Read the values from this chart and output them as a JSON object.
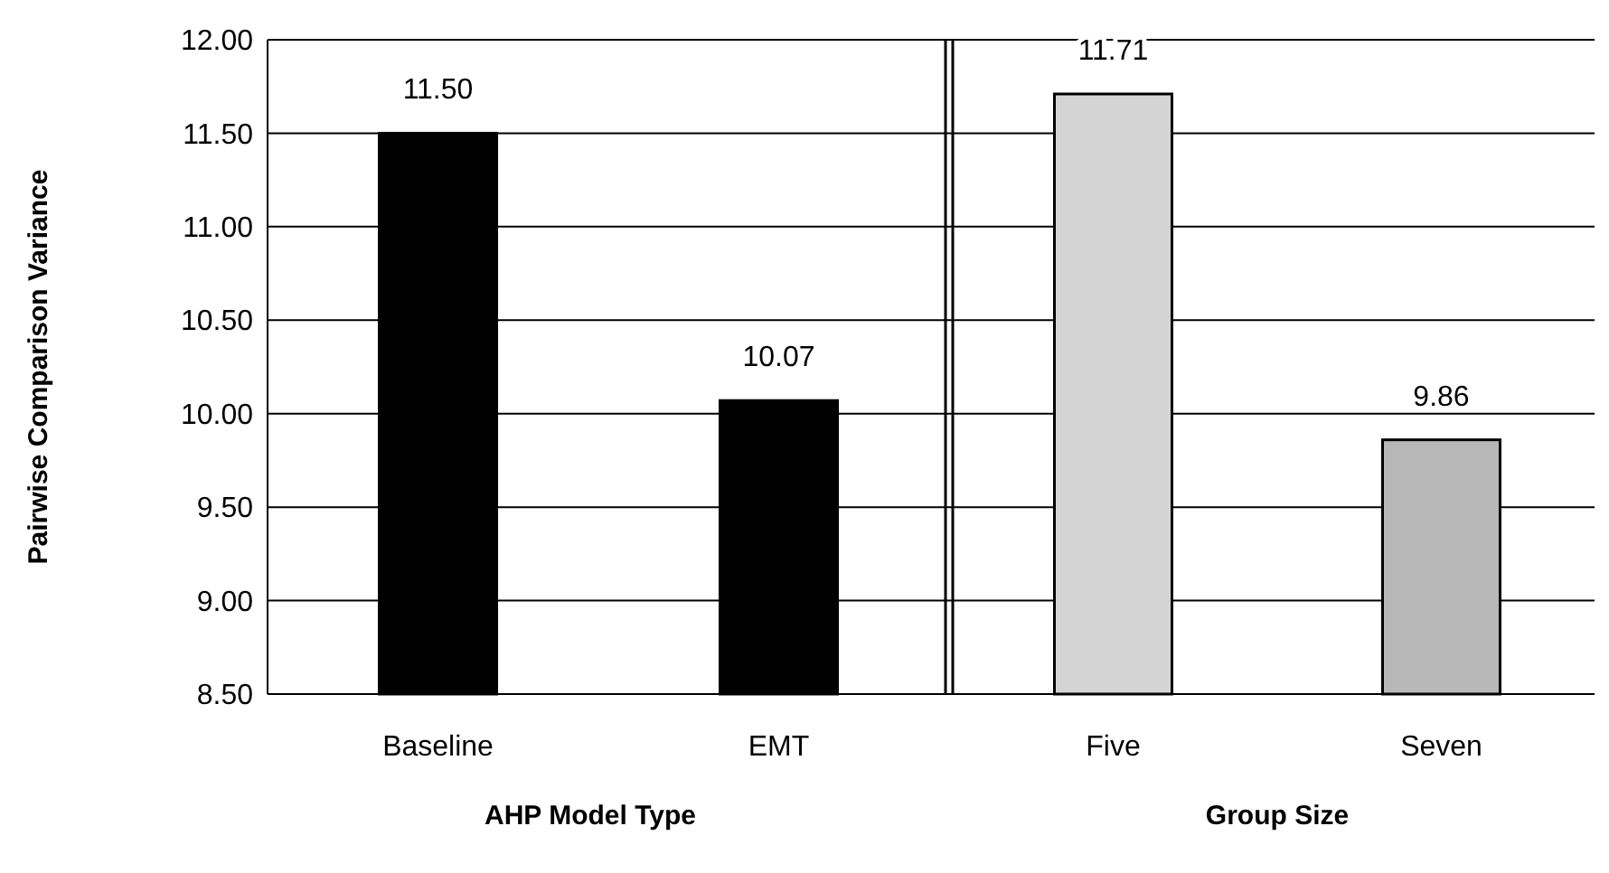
{
  "chart_data": [
    {
      "type": "bar",
      "categories": [
        "Baseline",
        "EMT"
      ],
      "values": [
        11.5,
        10.07
      ],
      "value_labels": [
        "11.50",
        "10.07"
      ],
      "colors": [
        "#000000",
        "#000000"
      ],
      "ylim": [
        8.5,
        12
      ],
      "yticks": [
        {
          "value": 8.5,
          "label": "8.50"
        },
        {
          "value": 9,
          "label": "9.00"
        },
        {
          "value": 9.5,
          "label": "9.50"
        },
        {
          "value": 10,
          "label": "10.00"
        },
        {
          "value": 10.5,
          "label": "10.50"
        },
        {
          "value": 11,
          "label": "11.00"
        },
        {
          "value": 11.5,
          "label": "11.50"
        },
        {
          "value": 12,
          "label": "12.00"
        }
      ],
      "grid": "y",
      "xlabel": "AHP Model Type",
      "ylabel": "Pairwise Comparison Variance"
    },
    {
      "type": "bar",
      "categories": [
        "Five",
        "Seven"
      ],
      "values": [
        11.71,
        9.86
      ],
      "value_labels": [
        "11.71",
        "9.86"
      ],
      "colors": [
        "#d4d4d4",
        "#b8b8b8"
      ],
      "ylim": [
        8.5,
        12
      ],
      "yticks": [
        {
          "value": 8.5,
          "label": null
        },
        {
          "value": 9,
          "label": null
        },
        {
          "value": 9.5,
          "label": null
        },
        {
          "value": 10,
          "label": null
        },
        {
          "value": 10.5,
          "label": null
        },
        {
          "value": 11,
          "label": null
        },
        {
          "value": 11.5,
          "label": null
        },
        {
          "value": 12,
          "label": null
        }
      ],
      "grid": "y",
      "xlabel": "Group Size",
      "tick_labels": "x"
    }
  ]
}
